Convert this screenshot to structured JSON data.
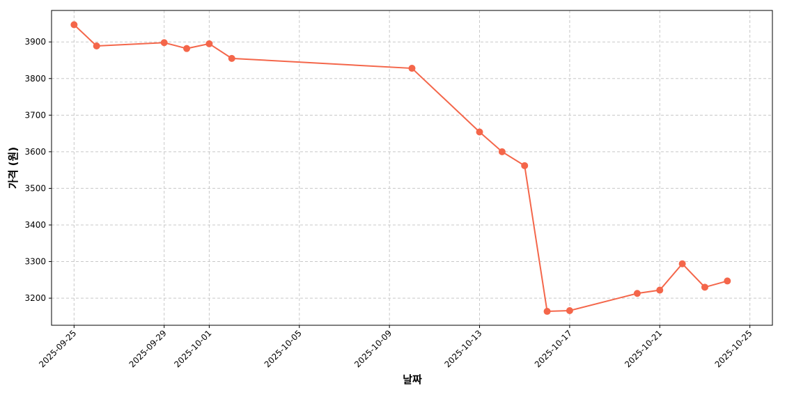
{
  "chart_data": {
    "type": "line",
    "x_label": "날짜",
    "y_label": "가격 (원)",
    "x": [
      "2025-09-25",
      "2025-09-26",
      "2025-09-29",
      "2025-09-30",
      "2025-10-01",
      "2025-10-02",
      "2025-10-10",
      "2025-10-13",
      "2025-10-14",
      "2025-10-15",
      "2025-10-16",
      "2025-10-17",
      "2025-10-20",
      "2025-10-21",
      "2025-10-22",
      "2025-10-23",
      "2025-10-24"
    ],
    "series": [
      {
        "name": "가격",
        "color": "#f4664a",
        "values": [
          3947,
          3889,
          3898,
          3882,
          3895,
          3855,
          3828,
          3654,
          3600,
          3562,
          3164,
          3166,
          3213,
          3222,
          3294,
          3230,
          3247
        ]
      }
    ],
    "xlim": [
      "2025-09-24",
      "2025-10-26"
    ],
    "xticks": [
      "2025-09-25",
      "2025-09-29",
      "2025-10-01",
      "2025-10-05",
      "2025-10-09",
      "2025-10-13",
      "2025-10-17",
      "2025-10-21",
      "2025-10-25"
    ],
    "ylim": [
      3126,
      3986
    ],
    "yticks": [
      3200,
      3300,
      3400,
      3500,
      3600,
      3700,
      3800,
      3900
    ],
    "grid": true
  }
}
